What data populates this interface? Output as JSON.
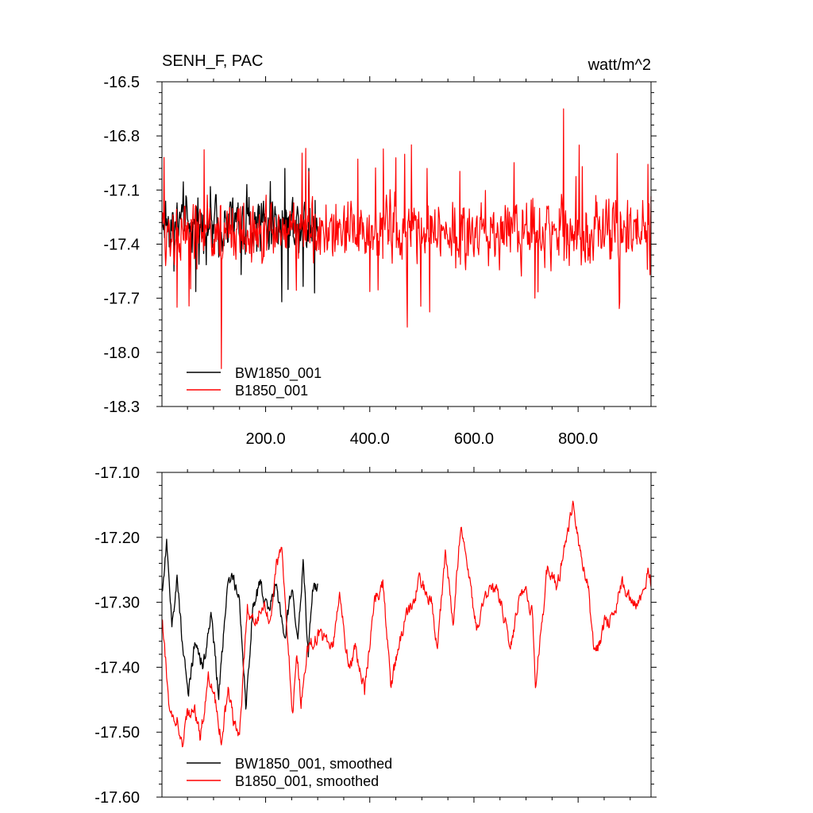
{
  "panel_top": {
    "left_title": "SENH_F, PAC",
    "right_title": "watt/m^2"
  },
  "colors": {
    "black_series": "#000000",
    "red_series": "#ff0000",
    "frame": "#000000"
  },
  "chart_data": [
    {
      "type": "line",
      "title": "SENH_F, PAC",
      "units_label": "watt/m^2",
      "xlim": [
        1,
        940
      ],
      "ylim": [
        -18.3,
        -16.5
      ],
      "y_ticks": [
        -18.3,
        -18.0,
        -17.7,
        -17.4,
        -17.1,
        -16.8,
        -16.5
      ],
      "y_tick_labels": [
        "-18.3",
        "-18.0",
        "-17.7",
        "-17.4",
        "-17.1",
        "-16.8",
        "-16.5"
      ],
      "x_ticks": [
        200,
        400,
        600,
        800
      ],
      "x_tick_labels": [
        "200.0",
        "400.0",
        "600.0",
        "800.0"
      ],
      "legend_position": "bottom-left",
      "series": [
        {
          "name": "BW1850_001",
          "color": "#000000",
          "x_range": [
            1,
            300
          ],
          "mean": -17.28,
          "amplitude": 0.12,
          "min": -17.78,
          "max": -16.98
        },
        {
          "name": "B1850_001",
          "color": "#ff0000",
          "x_range": [
            1,
            940
          ],
          "mean": -17.33,
          "amplitude": 0.13,
          "min": -18.09,
          "max": -16.64,
          "extremes": [
            [
              5,
              -16.92
            ],
            [
              30,
              -17.75
            ],
            [
              115,
              -18.09
            ],
            [
              472,
              -17.86
            ],
            [
              480,
              -16.85
            ],
            [
              772,
              -16.65
            ],
            [
              880,
              -17.72
            ]
          ]
        }
      ]
    },
    {
      "type": "line",
      "title": "",
      "xlim": [
        1,
        940
      ],
      "ylim": [
        -17.6,
        -17.1
      ],
      "y_ticks": [
        -17.6,
        -17.5,
        -17.4,
        -17.3,
        -17.2,
        -17.1
      ],
      "y_tick_labels": [
        "-17.60",
        "-17.50",
        "-17.40",
        "-17.30",
        "-17.20",
        "-17.10"
      ],
      "legend_position": "bottom-left",
      "series": [
        {
          "name": "BW1850_001, smoothed",
          "color": "#000000",
          "x_range": [
            1,
            300
          ],
          "anchors": [
            [
              1,
              -17.29
            ],
            [
              10,
              -17.21
            ],
            [
              20,
              -17.34
            ],
            [
              30,
              -17.26
            ],
            [
              40,
              -17.36
            ],
            [
              52,
              -17.44
            ],
            [
              65,
              -17.36
            ],
            [
              80,
              -17.4
            ],
            [
              95,
              -17.32
            ],
            [
              110,
              -17.44
            ],
            [
              125,
              -17.29
            ],
            [
              135,
              -17.26
            ],
            [
              150,
              -17.29
            ],
            [
              162,
              -17.46
            ],
            [
              175,
              -17.31
            ],
            [
              190,
              -17.27
            ],
            [
              205,
              -17.32
            ],
            [
              220,
              -17.27
            ],
            [
              235,
              -17.36
            ],
            [
              250,
              -17.28
            ],
            [
              262,
              -17.36
            ],
            [
              272,
              -17.24
            ],
            [
              282,
              -17.38
            ],
            [
              290,
              -17.28
            ]
          ]
        },
        {
          "name": "B1850_001, smoothed",
          "color": "#ff0000",
          "x_range": [
            1,
            940
          ],
          "anchors": [
            [
              1,
              -17.32
            ],
            [
              15,
              -17.46
            ],
            [
              30,
              -17.48
            ],
            [
              40,
              -17.53
            ],
            [
              50,
              -17.47
            ],
            [
              65,
              -17.47
            ],
            [
              75,
              -17.51
            ],
            [
              90,
              -17.41
            ],
            [
              105,
              -17.46
            ],
            [
              115,
              -17.51
            ],
            [
              128,
              -17.44
            ],
            [
              138,
              -17.48
            ],
            [
              150,
              -17.5
            ],
            [
              165,
              -17.31
            ],
            [
              180,
              -17.33
            ],
            [
              195,
              -17.3
            ],
            [
              210,
              -17.33
            ],
            [
              220,
              -17.25
            ],
            [
              230,
              -17.21
            ],
            [
              240,
              -17.32
            ],
            [
              252,
              -17.47
            ],
            [
              260,
              -17.38
            ],
            [
              268,
              -17.45
            ],
            [
              280,
              -17.37
            ],
            [
              290,
              -17.36
            ],
            [
              300,
              -17.35
            ],
            [
              315,
              -17.36
            ],
            [
              330,
              -17.37
            ],
            [
              342,
              -17.28
            ],
            [
              352,
              -17.36
            ],
            [
              362,
              -17.4
            ],
            [
              372,
              -17.37
            ],
            [
              390,
              -17.44
            ],
            [
              408,
              -17.3
            ],
            [
              425,
              -17.27
            ],
            [
              440,
              -17.43
            ],
            [
              455,
              -17.37
            ],
            [
              470,
              -17.32
            ],
            [
              485,
              -17.3
            ],
            [
              495,
              -17.26
            ],
            [
              505,
              -17.28
            ],
            [
              518,
              -17.3
            ],
            [
              530,
              -17.38
            ],
            [
              545,
              -17.22
            ],
            [
              560,
              -17.33
            ],
            [
              575,
              -17.17
            ],
            [
              590,
              -17.26
            ],
            [
              605,
              -17.34
            ],
            [
              615,
              -17.31
            ],
            [
              625,
              -17.29
            ],
            [
              640,
              -17.28
            ],
            [
              650,
              -17.29
            ],
            [
              660,
              -17.33
            ],
            [
              668,
              -17.36
            ],
            [
              675,
              -17.35
            ],
            [
              682,
              -17.31
            ],
            [
              690,
              -17.28
            ],
            [
              700,
              -17.29
            ],
            [
              712,
              -17.32
            ],
            [
              718,
              -17.43
            ],
            [
              728,
              -17.35
            ],
            [
              742,
              -17.24
            ],
            [
              760,
              -17.28
            ],
            [
              772,
              -17.22
            ],
            [
              790,
              -17.15
            ],
            [
              805,
              -17.23
            ],
            [
              820,
              -17.28
            ],
            [
              830,
              -17.37
            ],
            [
              838,
              -17.37
            ],
            [
              850,
              -17.33
            ],
            [
              860,
              -17.33
            ],
            [
              870,
              -17.31
            ],
            [
              885,
              -17.27
            ],
            [
              900,
              -17.3
            ],
            [
              912,
              -17.31
            ],
            [
              925,
              -17.28
            ],
            [
              935,
              -17.25
            ],
            [
              940,
              -17.27
            ]
          ]
        }
      ]
    }
  ]
}
